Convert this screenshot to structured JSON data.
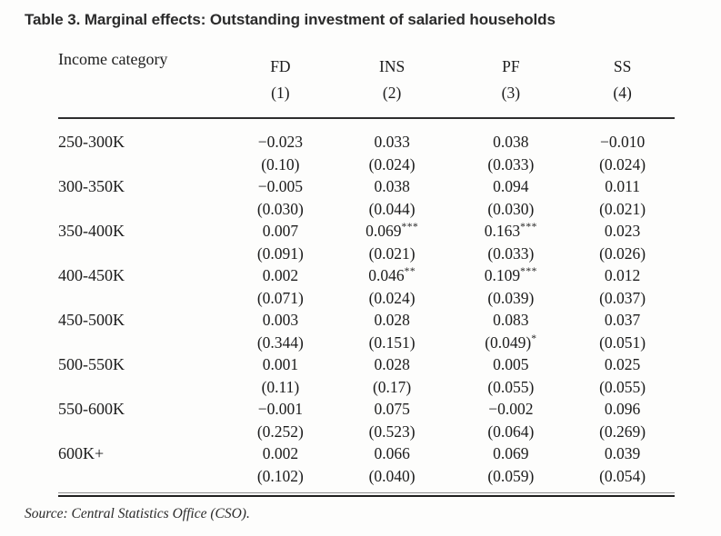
{
  "title": "Table 3. Marginal effects: Outstanding investment of salaried households",
  "table": {
    "row_header_label": "Income category",
    "columns": [
      {
        "label": "FD",
        "number": "(1)"
      },
      {
        "label": "INS",
        "number": "(2)"
      },
      {
        "label": "PF",
        "number": "(3)"
      },
      {
        "label": "SS",
        "number": "(4)"
      }
    ],
    "rows": [
      {
        "category": "250-300K",
        "cells": [
          {
            "coef": "−0.023",
            "coef_stars": "",
            "se": "(0.10)",
            "se_stars": ""
          },
          {
            "coef": "0.033",
            "coef_stars": "",
            "se": "(0.024)",
            "se_stars": ""
          },
          {
            "coef": "0.038",
            "coef_stars": "",
            "se": "(0.033)",
            "se_stars": ""
          },
          {
            "coef": "−0.010",
            "coef_stars": "",
            "se": "(0.024)",
            "se_stars": ""
          }
        ]
      },
      {
        "category": "300-350K",
        "cells": [
          {
            "coef": "−0.005",
            "coef_stars": "",
            "se": "(0.030)",
            "se_stars": ""
          },
          {
            "coef": "0.038",
            "coef_stars": "",
            "se": "(0.044)",
            "se_stars": ""
          },
          {
            "coef": "0.094",
            "coef_stars": "",
            "se": "(0.030)",
            "se_stars": ""
          },
          {
            "coef": "0.011",
            "coef_stars": "",
            "se": "(0.021)",
            "se_stars": ""
          }
        ]
      },
      {
        "category": "350-400K",
        "cells": [
          {
            "coef": "0.007",
            "coef_stars": "",
            "se": "(0.091)",
            "se_stars": ""
          },
          {
            "coef": "0.069",
            "coef_stars": "***",
            "se": "(0.021)",
            "se_stars": ""
          },
          {
            "coef": "0.163",
            "coef_stars": "***",
            "se": "(0.033)",
            "se_stars": ""
          },
          {
            "coef": "0.023",
            "coef_stars": "",
            "se": "(0.026)",
            "se_stars": ""
          }
        ]
      },
      {
        "category": "400-450K",
        "cells": [
          {
            "coef": "0.002",
            "coef_stars": "",
            "se": "(0.071)",
            "se_stars": ""
          },
          {
            "coef": "0.046",
            "coef_stars": "**",
            "se": "(0.024)",
            "se_stars": ""
          },
          {
            "coef": "0.109",
            "coef_stars": "***",
            "se": "(0.039)",
            "se_stars": ""
          },
          {
            "coef": "0.012",
            "coef_stars": "",
            "se": "(0.037)",
            "se_stars": ""
          }
        ]
      },
      {
        "category": "450-500K",
        "cells": [
          {
            "coef": "0.003",
            "coef_stars": "",
            "se": "(0.344)",
            "se_stars": ""
          },
          {
            "coef": "0.028",
            "coef_stars": "",
            "se": "(0.151)",
            "se_stars": ""
          },
          {
            "coef": "0.083",
            "coef_stars": "",
            "se": "(0.049)",
            "se_stars": "*"
          },
          {
            "coef": "0.037",
            "coef_stars": "",
            "se": "(0.051)",
            "se_stars": ""
          }
        ]
      },
      {
        "category": "500-550K",
        "cells": [
          {
            "coef": "0.001",
            "coef_stars": "",
            "se": "(0.11)",
            "se_stars": ""
          },
          {
            "coef": "0.028",
            "coef_stars": "",
            "se": "(0.17)",
            "se_stars": ""
          },
          {
            "coef": "0.005",
            "coef_stars": "",
            "se": "(0.055)",
            "se_stars": ""
          },
          {
            "coef": "0.025",
            "coef_stars": "",
            "se": "(0.055)",
            "se_stars": ""
          }
        ]
      },
      {
        "category": "550-600K",
        "cells": [
          {
            "coef": "−0.001",
            "coef_stars": "",
            "se": "(0.252)",
            "se_stars": ""
          },
          {
            "coef": "0.075",
            "coef_stars": "",
            "se": "(0.523)",
            "se_stars": ""
          },
          {
            "coef": "−0.002",
            "coef_stars": "",
            "se": "(0.064)",
            "se_stars": ""
          },
          {
            "coef": "0.096",
            "coef_stars": "",
            "se": "(0.269)",
            "se_stars": ""
          }
        ]
      },
      {
        "category": "600K+",
        "cells": [
          {
            "coef": "0.002",
            "coef_stars": "",
            "se": "(0.102)",
            "se_stars": ""
          },
          {
            "coef": "0.066",
            "coef_stars": "",
            "se": "(0.040)",
            "se_stars": ""
          },
          {
            "coef": "0.069",
            "coef_stars": "",
            "se": "(0.059)",
            "se_stars": ""
          },
          {
            "coef": "0.039",
            "coef_stars": "",
            "se": "(0.054)",
            "se_stars": ""
          }
        ]
      }
    ]
  },
  "source_note": "Source: Central Statistics Office (CSO).",
  "colors": {
    "title_text": "#2b2b2b",
    "body_text": "#1c1c1c",
    "rule": "#2e2e2e",
    "background": "#fdfdfc"
  }
}
